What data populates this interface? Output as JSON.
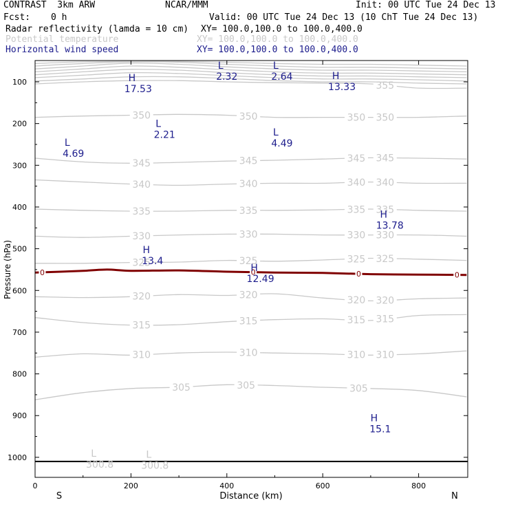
{
  "header": {
    "model": "CONTRAST  3km ARW",
    "org": "NCAR/MMM",
    "init": "Init: 00 UTC Tue 24 Dec 13",
    "fcst_label": "Fcst:",
    "fcst_value": "0 h",
    "valid": "Valid: 00 UTC Tue 24 Dec 13 (10 ChT Tue 24 Dec 13)",
    "fields": [
      {
        "name": "Radar reflectivity (lamda = 10 cm)",
        "xy": "XY= 100.0,100.0 to 100.0,400.0",
        "color": "#000000"
      },
      {
        "name": "Potential temperature",
        "xy": "XY= 100.0,100.0 to 100.0,400.0",
        "color": "#c8c8c8"
      },
      {
        "name": "Horizontal wind speed",
        "xy": "XY= 100.0,100.0 to 100.0,400.0",
        "color": "#1c1c8c"
      }
    ]
  },
  "chart_data": {
    "type": "line",
    "subtype": "vertical cross-section contour plot",
    "xlabel": "Distance (km)",
    "ylabel": "Pressure (hPa)",
    "xlim": [
      0,
      900
    ],
    "ylim": [
      1045,
      50
    ],
    "y_reversed": true,
    "grid": false,
    "x_ticks": [
      0,
      200,
      400,
      600,
      800
    ],
    "y_ticks": [
      100,
      200,
      300,
      400,
      500,
      600,
      700,
      800,
      900,
      1000
    ],
    "endpoint_labels": {
      "left": "S",
      "right": "N"
    },
    "colors": {
      "theta": "#c8c8c8",
      "wind_labels": "#1c1c8c",
      "freezing": "#800000",
      "axes": "#000000"
    },
    "theta_contours": [
      {
        "level": 305,
        "label": "305",
        "x": [
          0,
          100,
          200,
          300,
          400,
          500,
          600,
          700,
          800,
          900
        ],
        "p": [
          862,
          845,
          835,
          832,
          826,
          828,
          832,
          835,
          840,
          855
        ],
        "label_x": [
          305,
          440,
          675
        ]
      },
      {
        "level": 310,
        "label": "310",
        "x": [
          0,
          100,
          200,
          300,
          400,
          500,
          600,
          700,
          800,
          900
        ],
        "p": [
          760,
          752,
          755,
          750,
          748,
          750,
          752,
          755,
          752,
          745
        ],
        "label_x": [
          222,
          445,
          670,
          730
        ]
      },
      {
        "level": 315,
        "label": "315",
        "x": [
          0,
          100,
          200,
          300,
          400,
          500,
          600,
          700,
          800,
          900
        ],
        "p": [
          665,
          677,
          683,
          682,
          675,
          670,
          668,
          672,
          660,
          658
        ],
        "label_x": [
          222,
          445,
          670,
          730
        ]
      },
      {
        "level": 320,
        "label": "320",
        "x": [
          0,
          100,
          200,
          300,
          400,
          500,
          600,
          700,
          800,
          900
        ],
        "p": [
          615,
          617,
          615,
          610,
          612,
          608,
          618,
          625,
          620,
          618
        ],
        "label_x": [
          222,
          445,
          670,
          730
        ]
      },
      {
        "level": 325,
        "label": "325",
        "x": [
          0,
          100,
          200,
          300,
          400,
          500,
          600,
          700,
          800,
          900
        ],
        "p": [
          535,
          535,
          533,
          532,
          528,
          530,
          527,
          523,
          525,
          528
        ],
        "label_x": [
          222,
          445,
          670,
          730
        ]
      },
      {
        "level": 330,
        "label": "330",
        "x": [
          0,
          100,
          200,
          300,
          400,
          500,
          600,
          700,
          800,
          900
        ],
        "p": [
          470,
          473,
          470,
          467,
          465,
          465,
          467,
          467,
          467,
          470
        ],
        "label_x": [
          222,
          445,
          670,
          730
        ]
      },
      {
        "level": 335,
        "label": "335",
        "x": [
          0,
          100,
          200,
          300,
          400,
          500,
          600,
          700,
          800,
          900
        ],
        "p": [
          405,
          408,
          410,
          410,
          408,
          408,
          407,
          405,
          408,
          410
        ],
        "label_x": [
          222,
          445,
          670,
          730
        ]
      },
      {
        "level": 340,
        "label": "340",
        "x": [
          0,
          100,
          200,
          300,
          400,
          500,
          600,
          700,
          800,
          900
        ],
        "p": [
          335,
          340,
          345,
          348,
          345,
          343,
          343,
          340,
          343,
          343
        ],
        "label_x": [
          222,
          445,
          670,
          730
        ]
      },
      {
        "level": 345,
        "label": "345",
        "x": [
          0,
          100,
          200,
          300,
          400,
          500,
          600,
          700,
          800,
          900
        ],
        "p": [
          283,
          292,
          295,
          293,
          290,
          288,
          285,
          282,
          283,
          285
        ],
        "label_x": [
          222,
          445,
          670,
          730
        ]
      },
      {
        "level": 350,
        "label": "350",
        "x": [
          0,
          100,
          200,
          300,
          400,
          500,
          600,
          700,
          800,
          900
        ],
        "p": [
          185,
          182,
          180,
          178,
          180,
          185,
          185,
          185,
          185,
          182
        ],
        "label_x": [
          222,
          445,
          670,
          730
        ]
      },
      {
        "level": 355,
        "label": "355",
        "x": [
          0,
          100,
          200,
          300,
          400,
          500,
          600,
          700,
          800,
          900
        ],
        "p": [
          105,
          100,
          97,
          97,
          100,
          102,
          103,
          105,
          115,
          115
        ],
        "label_x": [
          730
        ]
      },
      {
        "level": 360,
        "label": "",
        "x": [
          0,
          100,
          200,
          300,
          400,
          500,
          600,
          700,
          800,
          900
        ],
        "p": [
          98,
          93,
          88,
          88,
          92,
          97,
          100,
          100,
          103,
          105
        ],
        "label_x": []
      },
      {
        "level": 365,
        "label": "",
        "x": [
          0,
          100,
          200,
          300,
          400,
          500,
          600,
          700,
          800,
          900
        ],
        "p": [
          90,
          84,
          78,
          80,
          85,
          90,
          93,
          93,
          95,
          98
        ],
        "label_x": []
      },
      {
        "level": 370,
        "label": "",
        "x": [
          0,
          100,
          200,
          300,
          400,
          500,
          600,
          700,
          800,
          900
        ],
        "p": [
          83,
          76,
          70,
          72,
          78,
          83,
          86,
          86,
          88,
          90
        ],
        "label_x": []
      },
      {
        "level": 375,
        "label": "",
        "x": [
          0,
          100,
          200,
          300,
          400,
          500,
          600,
          700,
          800,
          900
        ],
        "p": [
          76,
          69,
          62,
          65,
          71,
          76,
          79,
          79,
          81,
          83
        ],
        "label_x": []
      },
      {
        "level": 380,
        "label": "",
        "x": [
          0,
          100,
          200,
          300,
          400,
          500,
          600,
          700,
          800,
          900
        ],
        "p": [
          69,
          62,
          55,
          58,
          64,
          69,
          72,
          72,
          74,
          76
        ],
        "label_x": []
      },
      {
        "level": 385,
        "label": "",
        "x": [
          0,
          100,
          200,
          300,
          400,
          500,
          600,
          700,
          800,
          900
        ],
        "p": [
          62,
          56,
          52,
          53,
          58,
          62,
          65,
          65,
          67,
          69
        ],
        "label_x": []
      },
      {
        "level": 390,
        "label": "",
        "x": [
          0,
          100,
          200,
          300,
          400,
          500,
          600,
          700,
          800,
          900
        ],
        "p": [
          56,
          52,
          51,
          51,
          53,
          56,
          58,
          58,
          60,
          62
        ],
        "label_x": []
      }
    ],
    "freezing_level": {
      "label": "0",
      "x": [
        0,
        100,
        150,
        200,
        300,
        400,
        500,
        600,
        700,
        800,
        900
      ],
      "p": [
        557,
        553,
        550,
        553,
        552,
        555,
        557,
        558,
        561,
        562,
        563
      ],
      "label_x": [
        15,
        455,
        675,
        880
      ]
    },
    "bottom_line_p": 1010,
    "extrema_wind": [
      {
        "type": "H",
        "value": "17.53",
        "x": 215,
        "p": 100
      },
      {
        "type": "L",
        "value": "2.32",
        "x": 400,
        "p": 70
      },
      {
        "type": "L",
        "value": "2.64",
        "x": 515,
        "p": 70
      },
      {
        "type": "H",
        "value": "13.33",
        "x": 640,
        "p": 95
      },
      {
        "type": "L",
        "value": "2.21",
        "x": 270,
        "p": 210
      },
      {
        "type": "L",
        "value": "4.69",
        "x": 80,
        "p": 255
      },
      {
        "type": "L",
        "value": "4.49",
        "x": 515,
        "p": 230
      },
      {
        "type": "H",
        "value": "13.78",
        "x": 740,
        "p": 427
      },
      {
        "type": "H",
        "value": "13.4",
        "x": 245,
        "p": 512
      },
      {
        "type": "H",
        "value": "12.49",
        "x": 470,
        "p": 555
      },
      {
        "type": "H",
        "value": "15.1",
        "x": 720,
        "p": 915
      }
    ],
    "extrema_theta": [
      {
        "type": "L",
        "value": "300.8",
        "x": 135,
        "p": 1000
      },
      {
        "type": "L",
        "value": "300.8",
        "x": 250,
        "p": 1003
      }
    ]
  }
}
